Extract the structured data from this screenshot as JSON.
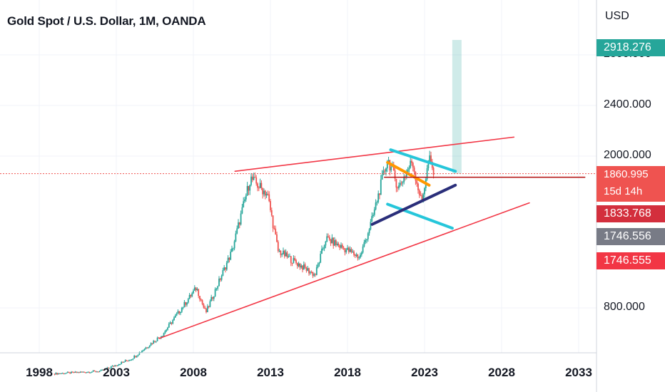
{
  "header": {
    "symbol_title": "Gold Spot / U.S. Dollar, 1M, OANDA",
    "currency": "USD"
  },
  "price_tags": {
    "target": {
      "label": "2918.276",
      "color": "#26a69a"
    },
    "last": {
      "label": "1860.995",
      "countdown": "15d 14h",
      "color": "#ef5350"
    },
    "level_a": {
      "label": "1833.768",
      "color": "#d32f3d"
    },
    "level_b": {
      "label": "1746.556",
      "color": "#787b86"
    },
    "level_c": {
      "label": "1746.555",
      "color": "#f23645"
    }
  },
  "chart_data": {
    "type": "candlestick",
    "title": "Gold Spot / U.S. Dollar, 1M, OANDA",
    "ylabel": "USD",
    "y_ticks": [
      800,
      2000,
      2400,
      2800
    ],
    "y_tick_labels": [
      "800.000",
      "2000.000",
      "2400.000",
      "2800.000"
    ],
    "x_ticks": [
      1998,
      2003,
      2008,
      2013,
      2018,
      2023,
      2028,
      2033
    ],
    "x_tick_labels": [
      "1998",
      "2003",
      "2008",
      "2013",
      "2018",
      "2023",
      "2028",
      "2033"
    ],
    "grid": true,
    "colors": {
      "up": "#26a69a",
      "down": "#ef5350"
    },
    "price_path": [
      {
        "year": 1999.0,
        "price": 280
      },
      {
        "year": 2002.0,
        "price": 300
      },
      {
        "year": 2004.0,
        "price": 400
      },
      {
        "year": 2006.0,
        "price": 590
      },
      {
        "year": 2008.2,
        "price": 960
      },
      {
        "year": 2008.8,
        "price": 760
      },
      {
        "year": 2010.5,
        "price": 1250
      },
      {
        "year": 2011.7,
        "price": 1825
      },
      {
        "year": 2012.8,
        "price": 1700
      },
      {
        "year": 2013.5,
        "price": 1250
      },
      {
        "year": 2015.9,
        "price": 1060
      },
      {
        "year": 2016.6,
        "price": 1350
      },
      {
        "year": 2018.8,
        "price": 1200
      },
      {
        "year": 2019.6,
        "price": 1500
      },
      {
        "year": 2020.6,
        "price": 1980
      },
      {
        "year": 2021.3,
        "price": 1750
      },
      {
        "year": 2022.2,
        "price": 1960
      },
      {
        "year": 2022.8,
        "price": 1630
      },
      {
        "year": 2023.3,
        "price": 1980
      },
      {
        "year": 2023.6,
        "price": 1861
      }
    ],
    "drawings": [
      {
        "name": "upper-resistance-line",
        "color": "#f23645",
        "from": {
          "year": 2010.7,
          "price": 1880
        },
        "to": {
          "year": 2028.8,
          "price": 2150
        }
      },
      {
        "name": "lower-support-line",
        "color": "#f23645",
        "from": {
          "year": 2005.8,
          "price": 560
        },
        "to": {
          "year": 2029.8,
          "price": 1630
        }
      },
      {
        "name": "channel-upper-cyan",
        "color": "#26c6da",
        "from": {
          "year": 2020.8,
          "price": 2050
        },
        "to": {
          "year": 2025.0,
          "price": 1880
        }
      },
      {
        "name": "channel-lower-cyan",
        "color": "#26c6da",
        "from": {
          "year": 2020.6,
          "price": 1620
        },
        "to": {
          "year": 2024.8,
          "price": 1430
        }
      },
      {
        "name": "orange-trend",
        "color": "#ff9800",
        "from": {
          "year": 2020.6,
          "price": 1950
        },
        "to": {
          "year": 2023.3,
          "price": 1770
        }
      },
      {
        "name": "navy-support",
        "color": "#2a2e7a",
        "from": {
          "year": 2019.6,
          "price": 1460
        },
        "to": {
          "year": 2025.0,
          "price": 1770
        }
      },
      {
        "name": "horizontal-level",
        "color": "#b71c1c",
        "from": {
          "year": 2020.4,
          "price": 1833
        },
        "to": {
          "year": 2033.4,
          "price": 1833
        }
      }
    ],
    "target_box": {
      "from_year": 2024.8,
      "to_year": 2025.4,
      "low": 1861,
      "high": 2918,
      "color": "#26a69a"
    }
  }
}
